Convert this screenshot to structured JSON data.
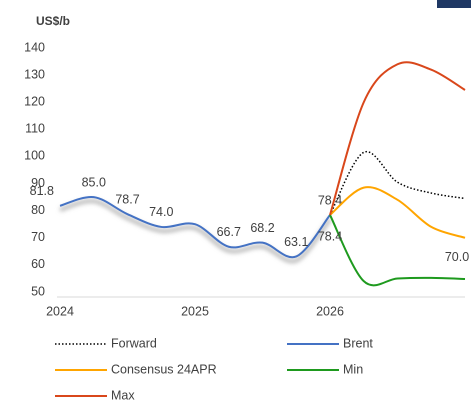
{
  "chart_data": {
    "type": "line",
    "y_axis_label": "US$/b",
    "xlim": [
      2024,
      2027
    ],
    "xticks": [
      2024,
      2025,
      2026
    ],
    "ylim": [
      50,
      140
    ],
    "yticks": [
      50,
      60,
      70,
      80,
      90,
      100,
      110,
      120,
      130,
      140
    ],
    "grid": false,
    "series": [
      {
        "name": "Forward",
        "color": "#000000",
        "dash": "dotted",
        "x": [
          2026,
          2026.25,
          2026.5,
          2026.75,
          2027
        ],
        "values": [
          78.4,
          101.5,
          90.5,
          86.5,
          84.5
        ]
      },
      {
        "name": "Brent",
        "color": "#4472c4",
        "x": [
          2024,
          2024.25,
          2024.5,
          2024.75,
          2025,
          2025.25,
          2025.5,
          2025.75,
          2026
        ],
        "values": [
          81.8,
          85.0,
          78.7,
          74.0,
          75,
          66.7,
          68.2,
          63.1,
          78.4
        ],
        "value_labels": [
          "81.8",
          "85.0",
          "78.7",
          "74.0",
          null,
          "66.7",
          "68.2",
          "63.1",
          "78.4"
        ]
      },
      {
        "name": "Consensus 24APR",
        "color": "#ffa500",
        "x": [
          2026,
          2026.25,
          2026.5,
          2026.75,
          2027
        ],
        "values": [
          78.4,
          88.5,
          84,
          74,
          70.0
        ],
        "value_labels": [
          null,
          null,
          null,
          null,
          "70.0"
        ]
      },
      {
        "name": "Min",
        "color": "#1e9a1e",
        "x": [
          2026,
          2026.25,
          2026.5,
          2026.75,
          2027
        ],
        "values": [
          78.4,
          54,
          55,
          55.2,
          54.8
        ],
        "value_labels": [
          "78.4",
          null,
          null,
          null,
          null
        ]
      },
      {
        "name": "Max",
        "color": "#d9471b",
        "x": [
          2026,
          2026.25,
          2026.5,
          2026.75,
          2027
        ],
        "values": [
          78.4,
          120,
          134,
          132,
          124.5
        ]
      }
    ]
  }
}
